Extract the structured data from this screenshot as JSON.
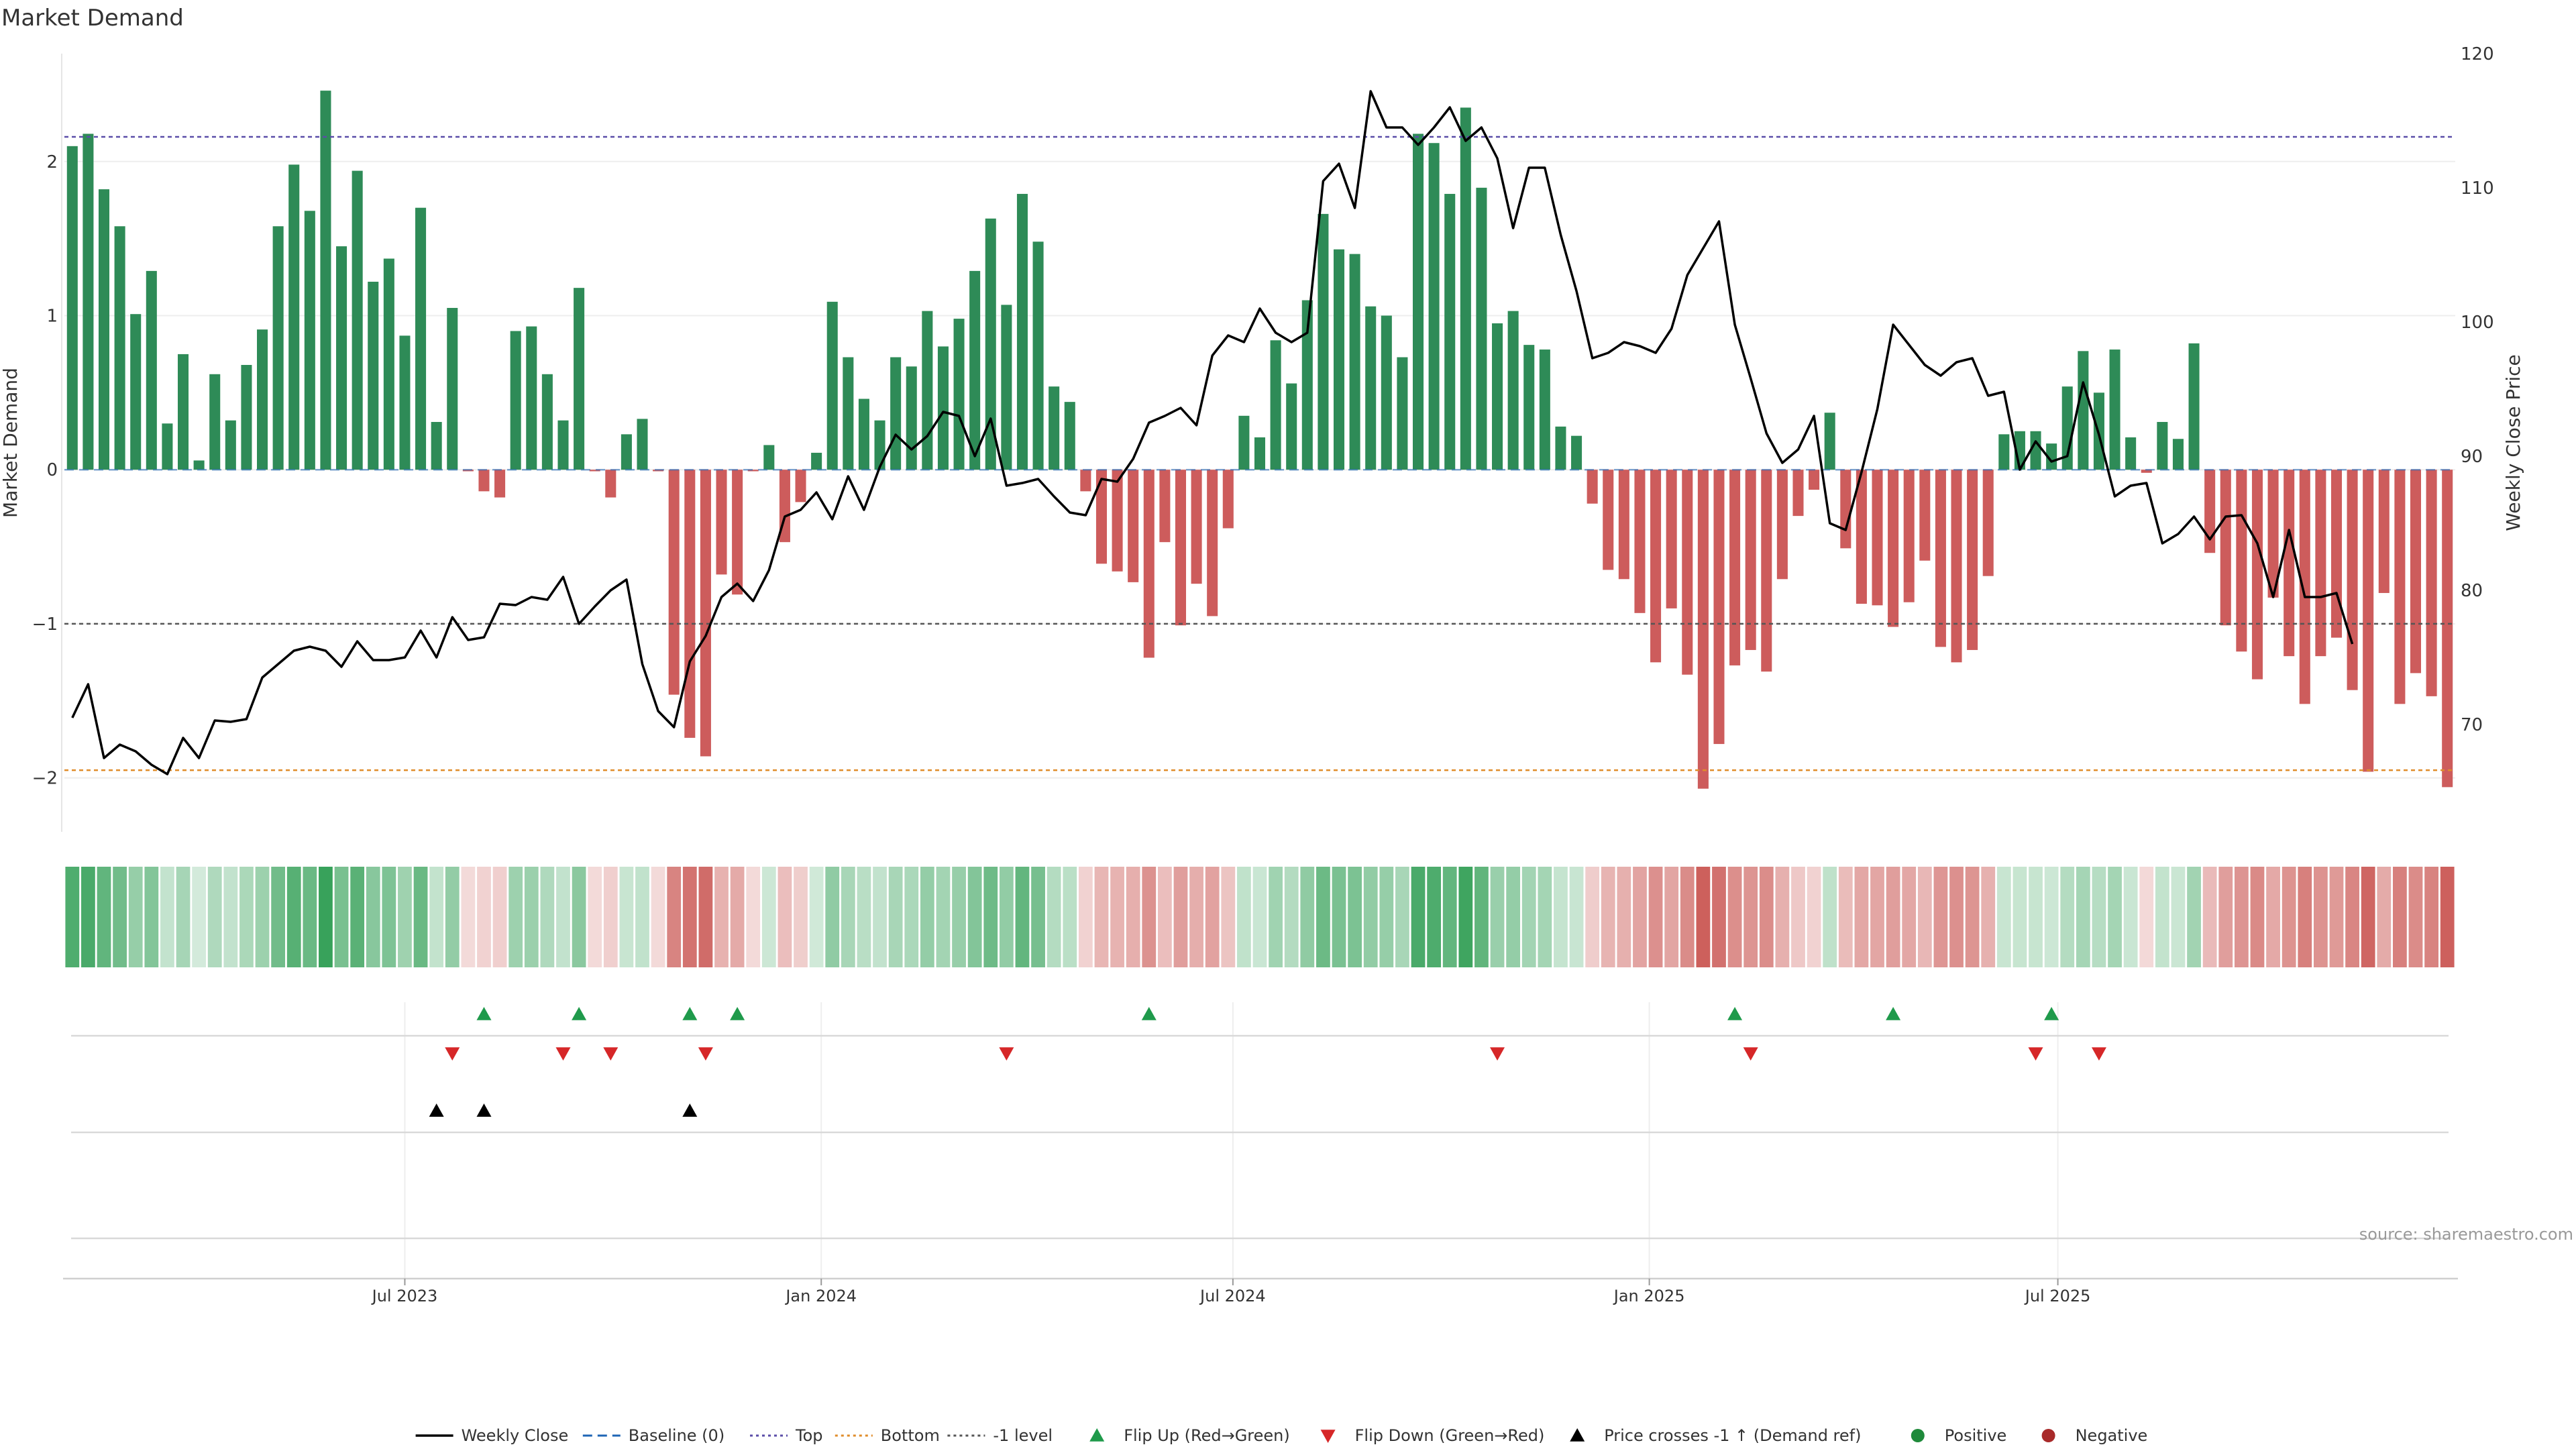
{
  "chart_data": {
    "type": "bar",
    "title": "Market Demand",
    "ylabel": "Market Demand",
    "y2label": "Weekly Close Price",
    "ylim": [
      -2.35,
      2.7
    ],
    "y2lim": [
      62,
      120
    ],
    "yticks": [
      "2",
      "1",
      "0",
      "−1",
      "−2"
    ],
    "yticks_values": [
      2,
      1,
      0,
      -1,
      -2
    ],
    "y2ticks": [
      "120",
      "110",
      "100",
      "90",
      "80",
      "70"
    ],
    "y2ticks_values": [
      120,
      110,
      100,
      90,
      80,
      70
    ],
    "xticks": [
      {
        "label": "Jul 2023",
        "week": 21
      },
      {
        "label": "Jan 2024",
        "week": 47.3
      },
      {
        "label": "Jul 2024",
        "week": 73.3
      },
      {
        "label": "Jan 2025",
        "week": 99.6
      },
      {
        "label": "Jul 2025",
        "week": 125.4
      }
    ],
    "reference_lines": {
      "top": 2.16,
      "bottom": -1.95,
      "minus_one": -1
    },
    "demand": [
      2.1,
      2.18,
      1.82,
      1.58,
      1.01,
      1.29,
      0.3,
      0.75,
      0.06,
      0.62,
      0.32,
      0.68,
      0.91,
      1.58,
      1.98,
      1.68,
      2.46,
      1.45,
      1.94,
      1.22,
      1.37,
      0.87,
      1.7,
      0.31,
      1.05,
      -0.01,
      -0.14,
      -0.18,
      0.9,
      0.93,
      0.62,
      0.32,
      1.18,
      -0.01,
      -0.18,
      0.23,
      0.33,
      -0.01,
      -1.46,
      -1.74,
      -1.86,
      -0.68,
      -0.81,
      -0.01,
      0.16,
      -0.47,
      -0.21,
      0.11,
      1.09,
      0.73,
      0.46,
      0.32,
      0.73,
      0.67,
      1.03,
      0.8,
      0.98,
      1.29,
      1.63,
      1.07,
      1.79,
      1.48,
      0.54,
      0.44,
      -0.14,
      -0.61,
      -0.66,
      -0.73,
      -1.22,
      -0.47,
      -1.01,
      -0.74,
      -0.95,
      -0.38,
      0.35,
      0.21,
      0.84,
      0.56,
      1.1,
      1.66,
      1.43,
      1.4,
      1.06,
      1.0,
      0.73,
      2.18,
      2.12,
      1.79,
      2.35,
      1.83,
      0.95,
      1.03,
      0.81,
      0.78,
      0.28,
      0.22,
      -0.22,
      -0.65,
      -0.71,
      -0.93,
      -1.25,
      -0.9,
      -1.33,
      -2.07,
      -1.78,
      -1.27,
      -1.17,
      -1.31,
      -0.71,
      -0.3,
      -0.13,
      0.37,
      -0.51,
      -0.87,
      -0.88,
      -1.02,
      -0.86,
      -0.59,
      -1.15,
      -1.25,
      -1.17,
      -0.69,
      0.23,
      0.25,
      0.25,
      0.17,
      0.54,
      0.77,
      0.5,
      0.78,
      0.21,
      -0.02,
      0.31,
      0.2,
      0.82,
      -0.54,
      -1.01,
      -1.18,
      -1.36,
      -0.83,
      -1.21,
      -1.52,
      -1.21,
      -1.09,
      -1.43,
      -1.96,
      -0.8,
      -1.52,
      -1.32,
      -1.47,
      -2.06
    ],
    "price": [
      70.5,
      73,
      67.5,
      68.5,
      68,
      67,
      66.3,
      69,
      67.5,
      70.3,
      70.2,
      70.4,
      73.5,
      74.5,
      75.5,
      75.8,
      75.5,
      74.3,
      76.2,
      74.8,
      74.8,
      75,
      77,
      75,
      78,
      76.3,
      76.5,
      79,
      78.9,
      79.5,
      79.3,
      81,
      77.5,
      78.8,
      80,
      80.8,
      74.5,
      71,
      69.8,
      74.7,
      76.6,
      79.5,
      80.5,
      79.2,
      81.5,
      85.5,
      86,
      87.3,
      85.3,
      88.5,
      86,
      89.2,
      91.6,
      90.5,
      91.5,
      93.3,
      93,
      90,
      92.8,
      87.8,
      88,
      88.3,
      87,
      85.8,
      85.6,
      88.3,
      88.1,
      89.8,
      92.5,
      93,
      93.6,
      92.3,
      97.5,
      99,
      98.5,
      101,
      99.2,
      98.5,
      99.2,
      110.5,
      111.8,
      108.5,
      117.2,
      114.5,
      114.5,
      113.2,
      114.5,
      116,
      113.5,
      114.5,
      112.2,
      107,
      111.5,
      111.5,
      106.5,
      102.3,
      97.3,
      97.7,
      98.5,
      98.2,
      97.7,
      99.5,
      103.5,
      105.5,
      107.5,
      99.8,
      95.8,
      91.7,
      89.5,
      90.5,
      93,
      85,
      84.5,
      88.8,
      93.5,
      99.8,
      98.3,
      96.8,
      96,
      97,
      97.3,
      94.5,
      94.8,
      89,
      91.1,
      89.6,
      90,
      95.5,
      91.6,
      87,
      87.8,
      88,
      83.5,
      84.2,
      85.5,
      83.8,
      85.5,
      85.6,
      83.5,
      79.5,
      84.5,
      79.5,
      79.5,
      79.8,
      76
    ],
    "flip_up": [
      26,
      32,
      39,
      42,
      68,
      105,
      115,
      125
    ],
    "flip_down": [
      24,
      31,
      34,
      40,
      59,
      90,
      106,
      124,
      128
    ],
    "price_cross": [
      23,
      26,
      39
    ],
    "source": "source: sharemaestro.com",
    "legend": [
      {
        "label": "Weekly Close",
        "kind": "line",
        "color": "#000000"
      },
      {
        "label": "Baseline (0)",
        "kind": "dash",
        "color": "#1f66b5"
      },
      {
        "label": "Top",
        "kind": "dot",
        "color": "#5b4ea8"
      },
      {
        "label": "Bottom",
        "kind": "dot",
        "color": "#e08d2b"
      },
      {
        "label": "-1 level",
        "kind": "dot",
        "color": "#555555"
      },
      {
        "label": "Flip Up (Red→Green)",
        "kind": "up",
        "color": "#1f9a4b"
      },
      {
        "label": "Flip Down (Green→Red)",
        "kind": "down",
        "color": "#d62728"
      },
      {
        "label": "Price crosses -1 ↑ (Demand ref)",
        "kind": "up",
        "color": "#000000"
      },
      {
        "label": "Positive",
        "kind": "circle",
        "color": "#1f8a3b"
      },
      {
        "label": "Negative",
        "kind": "circle",
        "color": "#a82a2a"
      }
    ],
    "colors": {
      "positive": "#2e8b57",
      "negative": "#cd5c5c",
      "price": "#000000",
      "top": "#5b4ea8",
      "bottom": "#e08d2b",
      "minus_one": "#555555",
      "flip_up": "#1f9a4b",
      "flip_down": "#d62728"
    }
  }
}
